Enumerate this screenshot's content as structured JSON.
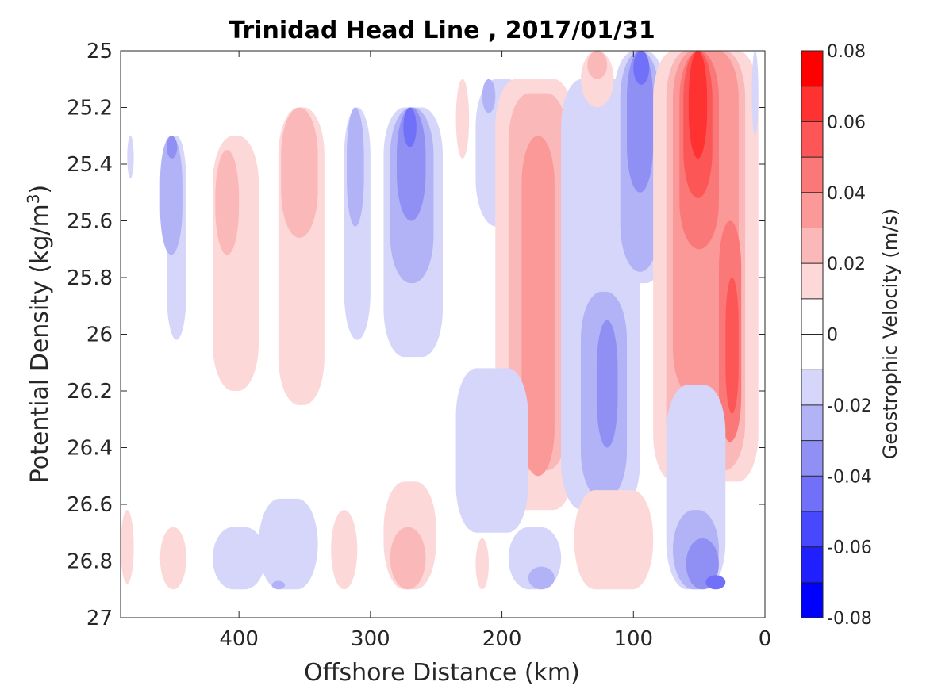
{
  "chart_data": {
    "type": "contour",
    "title": "Trinidad Head Line , 2017/01/31",
    "xlabel": "Offshore Distance (km)",
    "ylabel": "Potential Density (kg/m",
    "ylabel_sup": "3",
    "ylabel_close": ")",
    "xlim": [
      490,
      0
    ],
    "ylim": [
      25,
      27
    ],
    "x_reversed": true,
    "y_reversed": true,
    "x_ticks": [
      400,
      300,
      200,
      100,
      0
    ],
    "x_tick_labels": [
      "400",
      "300",
      "200",
      "100",
      "0"
    ],
    "y_ticks": [
      25,
      25.2,
      25.4,
      25.6,
      25.8,
      26,
      26.2,
      26.4,
      26.6,
      26.8,
      27
    ],
    "y_tick_labels": [
      "25",
      "25.2",
      "25.4",
      "25.6",
      "25.8",
      "26",
      "26.2",
      "26.4",
      "26.6",
      "26.8",
      "27"
    ],
    "colorbar": {
      "label": "Geostrophic Velocity (m/s)",
      "range": [
        -0.08,
        0.08
      ],
      "levels": [
        -0.08,
        -0.07,
        -0.06,
        -0.05,
        -0.04,
        -0.03,
        -0.02,
        -0.01,
        0,
        0.01,
        0.02,
        0.03,
        0.04,
        0.05,
        0.06,
        0.07,
        0.08
      ],
      "tick_values": [
        0.08,
        0.06,
        0.04,
        0.02,
        0,
        -0.02,
        -0.04,
        -0.06,
        -0.08
      ],
      "tick_labels": [
        "0.08",
        "0.06",
        "0.04",
        "0.02",
        "0",
        "-0.02",
        "-0.04",
        "-0.06",
        "-0.08"
      ],
      "colors": [
        "#0000ff",
        "#2020ff",
        "#4848ff",
        "#7070f8",
        "#9090f4",
        "#b2b2f7",
        "#d6d6fa",
        "#ffffff",
        "#ffffff",
        "#fcd8d8",
        "#fbb8b8",
        "#fb9898",
        "#fb7878",
        "#fc5656",
        "#ff3232",
        "#ff0000"
      ]
    },
    "grid": false,
    "cells": [
      {
        "x": [
          455,
          440
        ],
        "y": [
          25.3,
          26.02
        ],
        "v": -0.015
      },
      {
        "x": [
          460,
          443
        ],
        "y": [
          25.3,
          25.72
        ],
        "v": -0.025
      },
      {
        "x": [
          455,
          447
        ],
        "y": [
          25.3,
          25.38
        ],
        "v": -0.035
      },
      {
        "x": [
          420,
          385
        ],
        "y": [
          25.3,
          26.2
        ],
        "v": 0.015
      },
      {
        "x": [
          418,
          400
        ],
        "y": [
          25.35,
          25.72
        ],
        "v": 0.025
      },
      {
        "x": [
          370,
          335
        ],
        "y": [
          25.2,
          26.25
        ],
        "v": 0.015
      },
      {
        "x": [
          368,
          340
        ],
        "y": [
          25.2,
          25.66
        ],
        "v": 0.025
      },
      {
        "x": [
          320,
          300
        ],
        "y": [
          25.2,
          26.02
        ],
        "v": -0.015
      },
      {
        "x": [
          318,
          305
        ],
        "y": [
          25.2,
          25.62
        ],
        "v": -0.025
      },
      {
        "x": [
          290,
          245
        ],
        "y": [
          25.2,
          26.08
        ],
        "v": -0.015
      },
      {
        "x": [
          285,
          252
        ],
        "y": [
          25.2,
          25.82
        ],
        "v": -0.025
      },
      {
        "x": [
          280,
          258
        ],
        "y": [
          25.2,
          25.6
        ],
        "v": -0.035
      },
      {
        "x": [
          275,
          265
        ],
        "y": [
          25.2,
          25.34
        ],
        "v": -0.045
      },
      {
        "x": [
          235,
          225
        ],
        "y": [
          25.1,
          25.38
        ],
        "v": 0.015
      },
      {
        "x": [
          220,
          180
        ],
        "y": [
          25.1,
          25.62
        ],
        "v": -0.015
      },
      {
        "x": [
          215,
          205
        ],
        "y": [
          25.1,
          25.22
        ],
        "v": -0.025
      },
      {
        "x": [
          205,
          145
        ],
        "y": [
          25.1,
          26.62
        ],
        "v": 0.015
      },
      {
        "x": [
          195,
          150
        ],
        "y": [
          25.15,
          26.48
        ],
        "v": 0.025
      },
      {
        "x": [
          185,
          160
        ],
        "y": [
          25.3,
          26.5
        ],
        "v": 0.035
      },
      {
        "x": [
          155,
          95
        ],
        "y": [
          25.1,
          26.62
        ],
        "v": -0.015
      },
      {
        "x": [
          140,
          115
        ],
        "y": [
          25.0,
          25.2
        ],
        "v": 0.015
      },
      {
        "x": [
          135,
          120
        ],
        "y": [
          25.0,
          25.1
        ],
        "v": 0.025
      },
      {
        "x": [
          140,
          105
        ],
        "y": [
          25.85,
          26.58
        ],
        "v": -0.025
      },
      {
        "x": [
          128,
          112
        ],
        "y": [
          25.95,
          26.4
        ],
        "v": -0.035
      },
      {
        "x": [
          115,
          75
        ],
        "y": [
          25.0,
          25.82
        ],
        "v": -0.015
      },
      {
        "x": [
          110,
          80
        ],
        "y": [
          25.0,
          25.78
        ],
        "v": -0.025
      },
      {
        "x": [
          105,
          85
        ],
        "y": [
          25.0,
          25.5
        ],
        "v": -0.035
      },
      {
        "x": [
          100,
          88
        ],
        "y": [
          25.0,
          25.12
        ],
        "v": -0.045
      },
      {
        "x": [
          85,
          5
        ],
        "y": [
          25.0,
          26.52
        ],
        "v": 0.015
      },
      {
        "x": [
          75,
          15
        ],
        "y": [
          25.0,
          26.48
        ],
        "v": 0.025
      },
      {
        "x": [
          70,
          20
        ],
        "y": [
          25.0,
          26.22
        ],
        "v": 0.035
      },
      {
        "x": [
          65,
          35
        ],
        "y": [
          25.0,
          25.7
        ],
        "v": 0.045
      },
      {
        "x": [
          62,
          40
        ],
        "y": [
          25.0,
          25.52
        ],
        "v": 0.055
      },
      {
        "x": [
          58,
          44
        ],
        "y": [
          25.0,
          25.38
        ],
        "v": 0.065
      },
      {
        "x": [
          35,
          18
        ],
        "y": [
          25.6,
          26.38
        ],
        "v": 0.045
      },
      {
        "x": [
          30,
          20
        ],
        "y": [
          25.8,
          26.28
        ],
        "v": 0.055
      },
      {
        "x": [
          10,
          5
        ],
        "y": [
          25.0,
          25.3
        ],
        "v": -0.015
      },
      {
        "x": [
          485,
          480
        ],
        "y": [
          25.3,
          25.45
        ],
        "v": -0.015
      },
      {
        "x": [
          490,
          480
        ],
        "y": [
          26.62,
          26.88
        ],
        "v": 0.015
      },
      {
        "x": [
          460,
          440
        ],
        "y": [
          26.68,
          26.9
        ],
        "v": 0.015
      },
      {
        "x": [
          420,
          380
        ],
        "y": [
          26.68,
          26.9
        ],
        "v": -0.015
      },
      {
        "x": [
          385,
          340
        ],
        "y": [
          26.58,
          26.9
        ],
        "v": -0.015
      },
      {
        "x": [
          375,
          365
        ],
        "y": [
          26.87,
          26.9
        ],
        "v": -0.025
      },
      {
        "x": [
          330,
          310
        ],
        "y": [
          26.62,
          26.9
        ],
        "v": 0.015
      },
      {
        "x": [
          290,
          250
        ],
        "y": [
          26.52,
          26.9
        ],
        "v": 0.015
      },
      {
        "x": [
          285,
          258
        ],
        "y": [
          26.68,
          26.9
        ],
        "v": 0.025
      },
      {
        "x": [
          235,
          180
        ],
        "y": [
          26.12,
          26.7
        ],
        "v": -0.015
      },
      {
        "x": [
          220,
          210
        ],
        "y": [
          26.72,
          26.9
        ],
        "v": 0.015
      },
      {
        "x": [
          195,
          155
        ],
        "y": [
          26.68,
          26.9
        ],
        "v": -0.015
      },
      {
        "x": [
          180,
          160
        ],
        "y": [
          26.82,
          26.9
        ],
        "v": -0.025
      },
      {
        "x": [
          145,
          85
        ],
        "y": [
          26.55,
          26.9
        ],
        "v": 0.015
      },
      {
        "x": [
          75,
          30
        ],
        "y": [
          26.18,
          26.9
        ],
        "v": -0.015
      },
      {
        "x": [
          70,
          35
        ],
        "y": [
          26.62,
          26.9
        ],
        "v": -0.025
      },
      {
        "x": [
          60,
          35
        ],
        "y": [
          26.72,
          26.9
        ],
        "v": -0.035
      },
      {
        "x": [
          45,
          30
        ],
        "y": [
          26.85,
          26.9
        ],
        "v": -0.045
      }
    ]
  }
}
